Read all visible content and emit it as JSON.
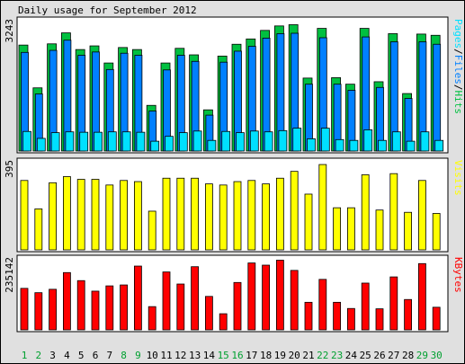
{
  "title": "Daily usage for September 2012",
  "colors": {
    "background": "#e0e0e0",
    "panel": "#ffffff",
    "hits": "#00c040",
    "files": "#0080ff",
    "pages": "#00e0ff",
    "visits": "#ffff00",
    "kbytes": "#ff0000",
    "weekend_label": "#00a030",
    "weekday_label": "#000000"
  },
  "chart_data": [
    {
      "type": "bar",
      "name": "Pages/Files/Hits",
      "ymax_label": "3243",
      "ylim": [
        0,
        3243
      ],
      "legend": [
        {
          "text": "Pages",
          "color": "#00e0ff"
        },
        {
          "text": "/",
          "color": "#000000"
        },
        {
          "text": "Files",
          "color": "#0080ff"
        },
        {
          "text": "/",
          "color": "#000000"
        },
        {
          "text": "Hits",
          "color": "#00c040"
        }
      ],
      "categories": [
        "1",
        "2",
        "3",
        "4",
        "5",
        "6",
        "7",
        "8",
        "9",
        "10",
        "11",
        "12",
        "13",
        "14",
        "15",
        "16",
        "17",
        "18",
        "19",
        "20",
        "21",
        "22",
        "23",
        "24",
        "25",
        "26",
        "27",
        "28",
        "29",
        "30"
      ],
      "series": [
        {
          "name": "Hits",
          "values": [
            2600,
            1550,
            2630,
            2900,
            2490,
            2580,
            2160,
            2540,
            2490,
            1120,
            2160,
            2520,
            2360,
            1010,
            2330,
            2620,
            2750,
            2960,
            3070,
            3100,
            1790,
            3010,
            1800,
            1640,
            3010,
            1700,
            2880,
            1410,
            2870,
            2840
          ]
        },
        {
          "name": "Files",
          "values": [
            2420,
            1400,
            2470,
            2720,
            2350,
            2430,
            2000,
            2400,
            2350,
            980,
            1990,
            2350,
            2200,
            880,
            2180,
            2450,
            2570,
            2770,
            2880,
            2890,
            1640,
            2780,
            1640,
            1490,
            2800,
            1560,
            2680,
            1290,
            2680,
            2620
          ]
        },
        {
          "name": "Pages",
          "values": [
            480,
            310,
            450,
            470,
            460,
            460,
            470,
            470,
            460,
            240,
            360,
            450,
            490,
            260,
            480,
            450,
            490,
            470,
            500,
            560,
            300,
            560,
            280,
            260,
            520,
            260,
            470,
            240,
            470,
            260
          ]
        }
      ]
    },
    {
      "type": "bar",
      "name": "Visits",
      "ymax_label": "395",
      "ylim": [
        0,
        395
      ],
      "legend": [
        {
          "text": "Visits",
          "color": "#ffff00"
        }
      ],
      "categories": [
        "1",
        "2",
        "3",
        "4",
        "5",
        "6",
        "7",
        "8",
        "9",
        "10",
        "11",
        "12",
        "13",
        "14",
        "15",
        "16",
        "17",
        "18",
        "19",
        "20",
        "21",
        "22",
        "23",
        "24",
        "25",
        "26",
        "27",
        "28",
        "29",
        "30"
      ],
      "series": [
        {
          "name": "Visits",
          "values": [
            305,
            180,
            295,
            322,
            310,
            310,
            285,
            305,
            300,
            170,
            315,
            315,
            315,
            290,
            285,
            300,
            305,
            290,
            315,
            345,
            245,
            375,
            185,
            185,
            330,
            175,
            335,
            165,
            305,
            160
          ]
        }
      ]
    },
    {
      "type": "bar",
      "name": "KBytes",
      "ymax_label": "235142",
      "ylim": [
        0,
        235142
      ],
      "legend": [
        {
          "text": "KBytes",
          "color": "#ff0000"
        }
      ],
      "categories": [
        "1",
        "2",
        "3",
        "4",
        "5",
        "6",
        "7",
        "8",
        "9",
        "10",
        "11",
        "12",
        "13",
        "14",
        "15",
        "16",
        "17",
        "18",
        "19",
        "20",
        "21",
        "22",
        "23",
        "24",
        "25",
        "26",
        "27",
        "28",
        "29",
        "30"
      ],
      "series": [
        {
          "name": "KBytes",
          "values": [
            134000,
            120000,
            131000,
            185000,
            159000,
            125000,
            142000,
            145000,
            206000,
            75000,
            187000,
            148000,
            204000,
            108000,
            52000,
            153000,
            216000,
            209000,
            225000,
            192000,
            89000,
            163000,
            89000,
            69000,
            151000,
            68000,
            171000,
            98000,
            214000,
            73000
          ]
        }
      ]
    }
  ],
  "weekend_days": [
    "1",
    "2",
    "8",
    "9",
    "15",
    "16",
    "22",
    "23",
    "29",
    "30"
  ]
}
